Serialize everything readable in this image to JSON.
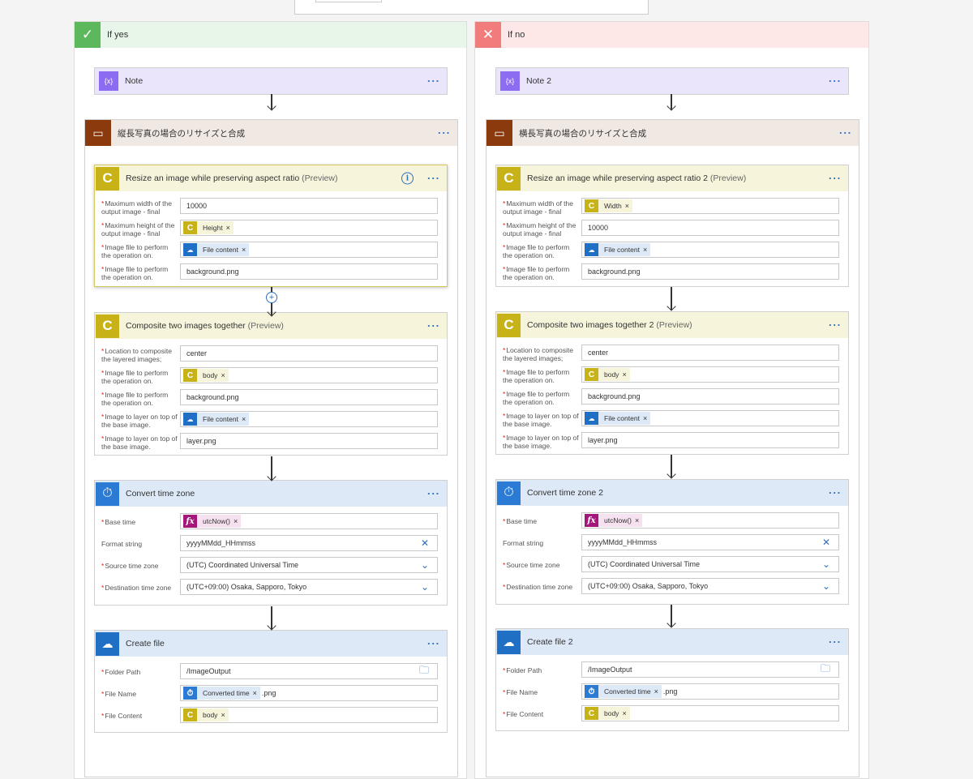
{
  "branch_yes": {
    "title": "If yes",
    "note": {
      "title": "Note"
    },
    "scope": {
      "title": "縦長写真の場合のリサイズと合成"
    },
    "resize": {
      "title": "Resize an image while preserving aspect ratio",
      "preview": "(Preview)",
      "fields": [
        {
          "label": "Maximum width of the output image - final",
          "value": "10000"
        },
        {
          "label": "Maximum height of the output image - final",
          "token": "Height",
          "token_type": "c"
        },
        {
          "label": "Image file to perform the operation on.",
          "token": "File content",
          "token_type": "cloud"
        },
        {
          "label": "Image file to perform the operation on.",
          "value": "background.png"
        }
      ]
    },
    "composite": {
      "title": "Composite two images together",
      "preview": "(Preview)",
      "fields": [
        {
          "label": "Location to composite the layered images;",
          "value": "center"
        },
        {
          "label": "Image file to perform the operation on.",
          "token": "body",
          "token_type": "c"
        },
        {
          "label": "Image file to perform the operation on.",
          "value": "background.png"
        },
        {
          "label": "Image to layer on top of the base image.",
          "token": "File content",
          "token_type": "cloud"
        },
        {
          "label": "Image to layer on top of the base image.",
          "value": "layer.png"
        }
      ]
    },
    "timezone": {
      "title": "Convert time zone",
      "fields": [
        {
          "label": "Base time",
          "token": "utcNow()",
          "token_type": "fx",
          "required": true
        },
        {
          "label": "Format string",
          "value": "yyyyMMdd_HHmmss",
          "required": false
        },
        {
          "label": "Source time zone",
          "value": "(UTC) Coordinated Universal Time",
          "required": true
        },
        {
          "label": "Destination time zone",
          "value": "(UTC+09:00) Osaka, Sapporo, Tokyo",
          "required": true
        }
      ]
    },
    "createfile": {
      "title": "Create file",
      "fields": [
        {
          "label": "Folder Path",
          "value": "/ImageOutput"
        },
        {
          "label": "File Name",
          "token": "Converted time",
          "token_type": "tz",
          "after": ".png"
        },
        {
          "label": "File Content",
          "token": "body",
          "token_type": "c"
        }
      ]
    }
  },
  "branch_no": {
    "title": "If no",
    "note": {
      "title": "Note 2"
    },
    "scope": {
      "title": "横長写真の場合のリサイズと合成"
    },
    "resize": {
      "title": "Resize an image while preserving aspect ratio 2",
      "preview": "(Preview)",
      "fields": [
        {
          "label": "Maximum width of the output image - final",
          "token": "Width",
          "token_type": "c"
        },
        {
          "label": "Maximum height of the output image - final",
          "value": "10000"
        },
        {
          "label": "Image file to perform the operation on.",
          "token": "File content",
          "token_type": "cloud"
        },
        {
          "label": "Image file to perform the operation on.",
          "value": "background.png"
        }
      ]
    },
    "composite": {
      "title": "Composite two images together 2",
      "preview": "(Preview)",
      "fields": [
        {
          "label": "Location to composite the layered images;",
          "value": "center"
        },
        {
          "label": "Image file to perform the operation on.",
          "token": "body",
          "token_type": "c"
        },
        {
          "label": "Image file to perform the operation on.",
          "value": "background.png"
        },
        {
          "label": "Image to layer on top of the base image.",
          "token": "File content",
          "token_type": "cloud"
        },
        {
          "label": "Image to layer on top of the base image.",
          "value": "layer.png"
        }
      ]
    },
    "timezone": {
      "title": "Convert time zone 2",
      "fields": [
        {
          "label": "Base time",
          "token": "utcNow()",
          "token_type": "fx",
          "required": true
        },
        {
          "label": "Format string",
          "value": "yyyyMMdd_HHmmss",
          "required": false
        },
        {
          "label": "Source time zone",
          "value": "(UTC) Coordinated Universal Time",
          "required": true
        },
        {
          "label": "Destination time zone",
          "value": "(UTC+09:00) Osaka, Sapporo, Tokyo",
          "required": true
        }
      ]
    },
    "createfile": {
      "title": "Create file 2",
      "fields": [
        {
          "label": "Folder Path",
          "value": "/ImageOutput"
        },
        {
          "label": "File Name",
          "token": "Converted time",
          "token_type": "tz",
          "after": ".png"
        },
        {
          "label": "File Content",
          "token": "body",
          "token_type": "c"
        }
      ]
    }
  },
  "icons": {
    "check": "check-icon",
    "cross": "close-icon",
    "note": "variable-icon",
    "scope": "scope-icon",
    "connector": "connector-c-icon",
    "timer": "clock-icon",
    "cloud": "onedrive-icon",
    "fx": "expression-icon",
    "clear": "clear-x-icon",
    "dropdown": "chevron-down-icon",
    "folder": "folder-icon",
    "info": "info-icon",
    "more": "more-options-icon"
  },
  "colors": {
    "yes_accent": "#5cb85c",
    "no_accent": "#f17c7c",
    "note_accent": "#8c6cf0",
    "scope_accent": "#8b3a0e",
    "connector_accent": "#c7b318",
    "time_accent": "#2b7bd4",
    "onedrive_accent": "#1f6fc5",
    "fx_accent": "#a4167a",
    "link_blue": "#2f6fbf"
  }
}
